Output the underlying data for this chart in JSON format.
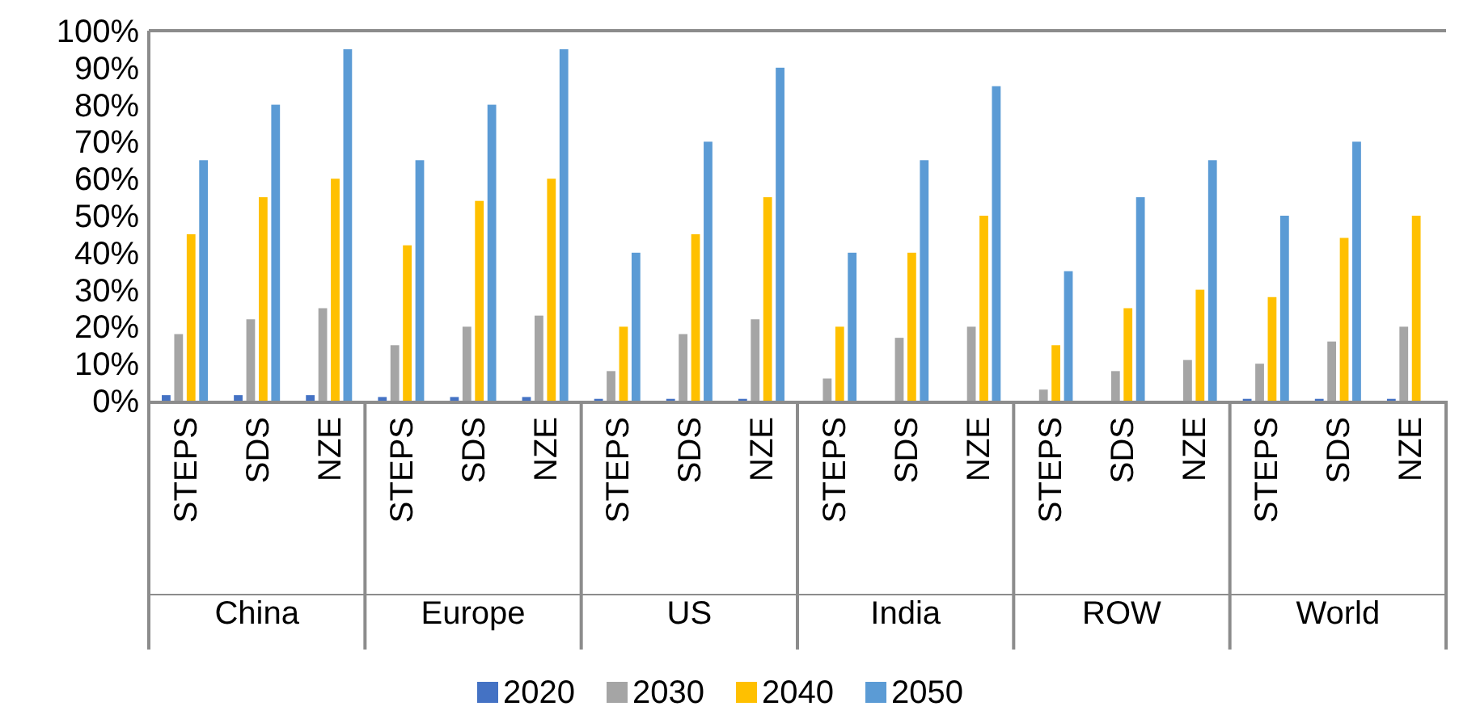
{
  "chart_data": {
    "type": "bar",
    "categories": [
      "STEPS",
      "SDS",
      "NZE",
      "STEPS",
      "SDS",
      "NZE",
      "STEPS",
      "SDS",
      "NZE",
      "STEPS",
      "SDS",
      "NZE",
      "STEPS",
      "SDS",
      "NZE",
      "STEPS",
      "SDS",
      "NZE"
    ],
    "annotations": [
      "China",
      "Europe",
      "US",
      "India",
      "ROW",
      "World"
    ],
    "series": [
      {
        "name": "2020",
        "color": "#4472c4",
        "values": [
          1.5,
          1.5,
          1.5,
          1,
          1,
          1,
          0.5,
          0.5,
          0.5,
          0,
          0,
          0,
          0,
          0,
          0,
          0.5,
          0.5,
          0.5
        ]
      },
      {
        "name": "2030",
        "color": "#a5a5a5",
        "values": [
          18,
          22,
          25,
          15,
          20,
          23,
          8,
          18,
          22,
          6,
          17,
          20,
          3,
          8,
          11,
          10,
          16,
          20
        ]
      },
      {
        "name": "2040",
        "color": "#ffc000",
        "values": [
          45,
          55,
          60,
          42,
          54,
          60,
          20,
          45,
          55,
          20,
          40,
          50,
          15,
          25,
          30,
          28,
          44,
          50
        ]
      },
      {
        "name": "2050",
        "color": "#5b9bd5",
        "values": [
          65,
          80,
          95,
          65,
          80,
          95,
          40,
          70,
          90,
          40,
          65,
          85,
          35,
          55,
          65,
          50,
          70,
          null
        ]
      }
    ],
    "ylim": [
      0,
      100
    ],
    "yticks": [
      {
        "value": 0,
        "label": "0%"
      },
      {
        "value": 10,
        "label": "10%"
      },
      {
        "value": 20,
        "label": "20%"
      },
      {
        "value": 30,
        "label": "30%"
      },
      {
        "value": 40,
        "label": "40%"
      },
      {
        "value": 50,
        "label": "50%"
      },
      {
        "value": 60,
        "label": "60%"
      },
      {
        "value": 70,
        "label": "70%"
      },
      {
        "value": 80,
        "label": "80%"
      },
      {
        "value": 90,
        "label": "90%"
      },
      {
        "value": 100,
        "label": "100%"
      }
    ],
    "grid": false,
    "legend": "bottom"
  }
}
